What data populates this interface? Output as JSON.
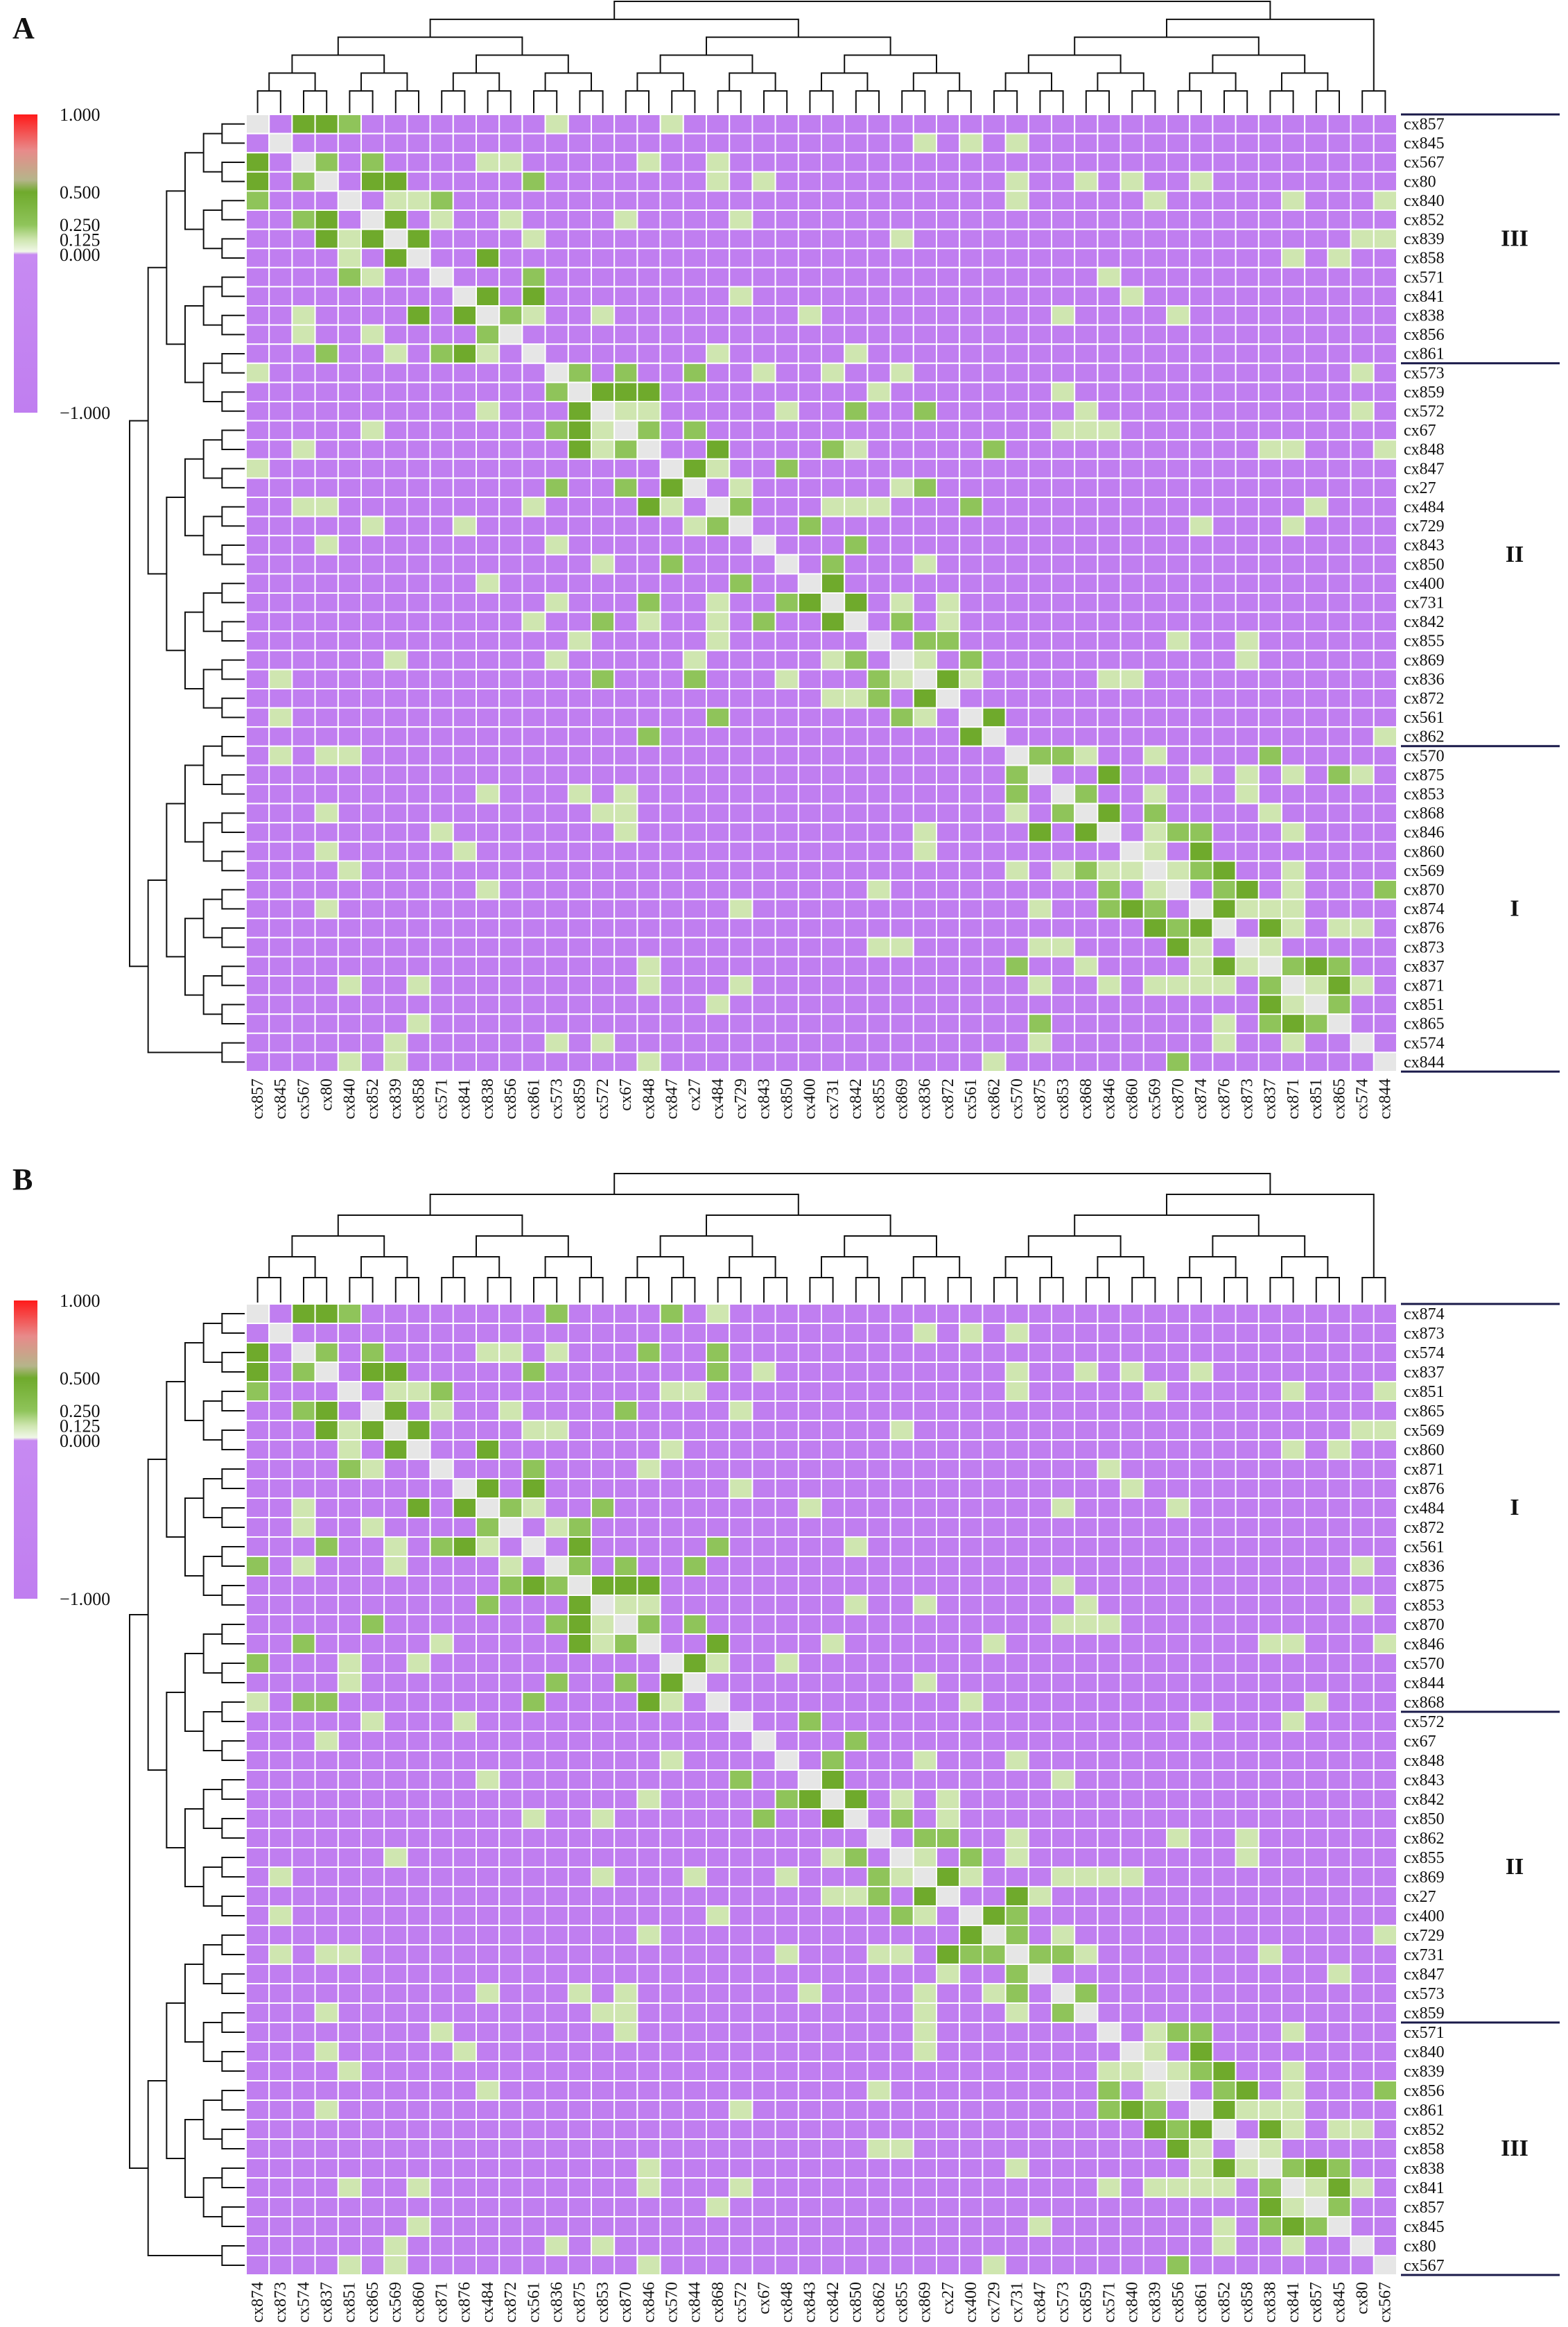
{
  "colors": {
    "min": "#c07ef0",
    "zero": "#c78af2",
    "p0125": "#cfe6b0",
    "p025": "#8fc45a",
    "p05": "#6faa2c",
    "p075": "#c9c9a8",
    "max": "#ff1a1a",
    "diag": "#e6e6e6"
  },
  "legend": {
    "ticks": [
      "1.000",
      "0.500",
      "0.250",
      "0.125",
      "0.000",
      "−1.000"
    ]
  },
  "chart_data": [
    {
      "type": "heatmap",
      "title": "A",
      "order": [
        "cx857",
        "cx845",
        "cx567",
        "cx80",
        "cx840",
        "cx852",
        "cx839",
        "cx858",
        "cx571",
        "cx841",
        "cx838",
        "cx856",
        "cx861",
        "cx573",
        "cx859",
        "cx572",
        "cx67",
        "cx848",
        "cx847",
        "cx27",
        "cx484",
        "cx729",
        "cx843",
        "cx850",
        "cx400",
        "cx731",
        "cx842",
        "cx855",
        "cx869",
        "cx836",
        "cx872",
        "cx561",
        "cx862",
        "cx570",
        "cx875",
        "cx853",
        "cx868",
        "cx846",
        "cx860",
        "cx569",
        "cx870",
        "cx874",
        "cx876",
        "cx873",
        "cx837",
        "cx871",
        "cx851",
        "cx865",
        "cx574",
        "cx844"
      ],
      "clusters": [
        {
          "label": "III",
          "start": 0,
          "end": 12
        },
        {
          "label": "II",
          "start": 13,
          "end": 32
        },
        {
          "label": "I",
          "start": 33,
          "end": 49
        }
      ],
      "value_range": [
        -1.0,
        1.0
      ]
    },
    {
      "type": "heatmap",
      "title": "B",
      "order": [
        "cx874",
        "cx873",
        "cx574",
        "cx837",
        "cx851",
        "cx865",
        "cx569",
        "cx860",
        "cx871",
        "cx876",
        "cx484",
        "cx872",
        "cx561",
        "cx836",
        "cx875",
        "cx853",
        "cx870",
        "cx846",
        "cx570",
        "cx844",
        "cx868",
        "cx572",
        "cx67",
        "cx848",
        "cx843",
        "cx842",
        "cx850",
        "cx862",
        "cx855",
        "cx869",
        "cx27",
        "cx400",
        "cx729",
        "cx731",
        "cx847",
        "cx573",
        "cx859",
        "cx571",
        "cx840",
        "cx839",
        "cx856",
        "cx861",
        "cx852",
        "cx858",
        "cx838",
        "cx841",
        "cx857",
        "cx845",
        "cx80",
        "cx567"
      ],
      "clusters": [
        {
          "label": "I",
          "start": 0,
          "end": 20
        },
        {
          "label": "II",
          "start": 21,
          "end": 36
        },
        {
          "label": "III",
          "start": 37,
          "end": 49
        }
      ],
      "value_range": [
        -1.0,
        1.0
      ]
    }
  ]
}
